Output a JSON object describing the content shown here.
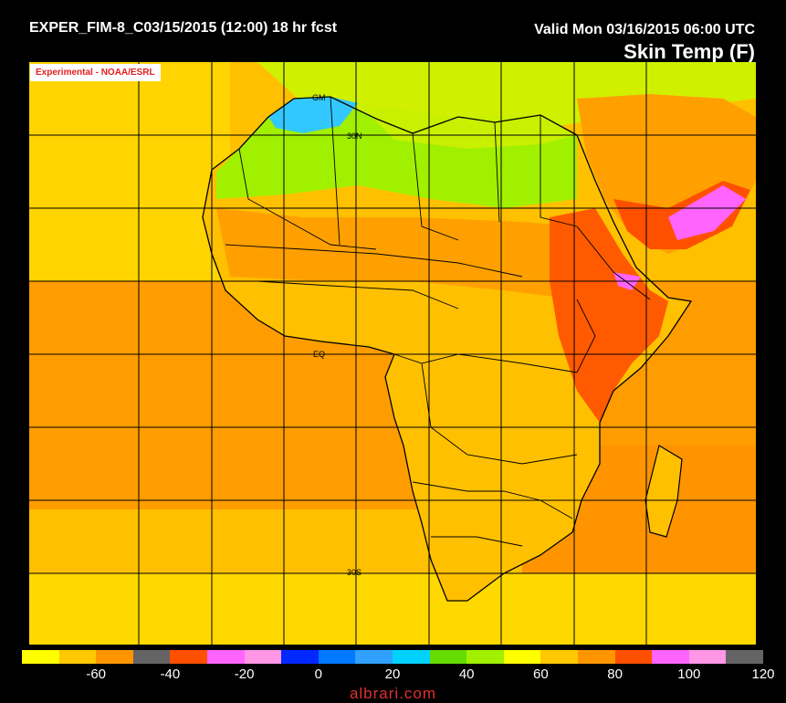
{
  "header": {
    "run": "EXPER_FIM-8_C03/15/2015 (12:00) 18 hr fcst",
    "valid": "Valid Mon 03/16/2015 06:00 UTC",
    "title": "Skin Temp (F)"
  },
  "badge": "Experimental - NOAA/ESRL",
  "map": {
    "labels": [
      {
        "id": "label-30n",
        "text": "30N"
      },
      {
        "id": "label-eq",
        "text": "EQ"
      },
      {
        "id": "label-30s",
        "text": "30S"
      },
      {
        "id": "label-gm",
        "text": "GM"
      }
    ]
  },
  "colorbar": {
    "colors": [
      "#ffff00",
      "#ffc800",
      "#ff9600",
      "#646464",
      "#ff5000",
      "#ff64ff",
      "#ff96e6",
      "#0028ff",
      "#0078ff",
      "#32a0ff",
      "#00d2ff",
      "#64dc00",
      "#a0f000",
      "#ffff00",
      "#ffc800",
      "#ff9600",
      "#ff5000",
      "#ff64ff",
      "#ff96e6",
      "#646464"
    ],
    "ticks": [
      "-60",
      "-40",
      "-20",
      "0",
      "20",
      "40",
      "60",
      "80",
      "100",
      "120"
    ]
  },
  "footer": "albrari.com"
}
